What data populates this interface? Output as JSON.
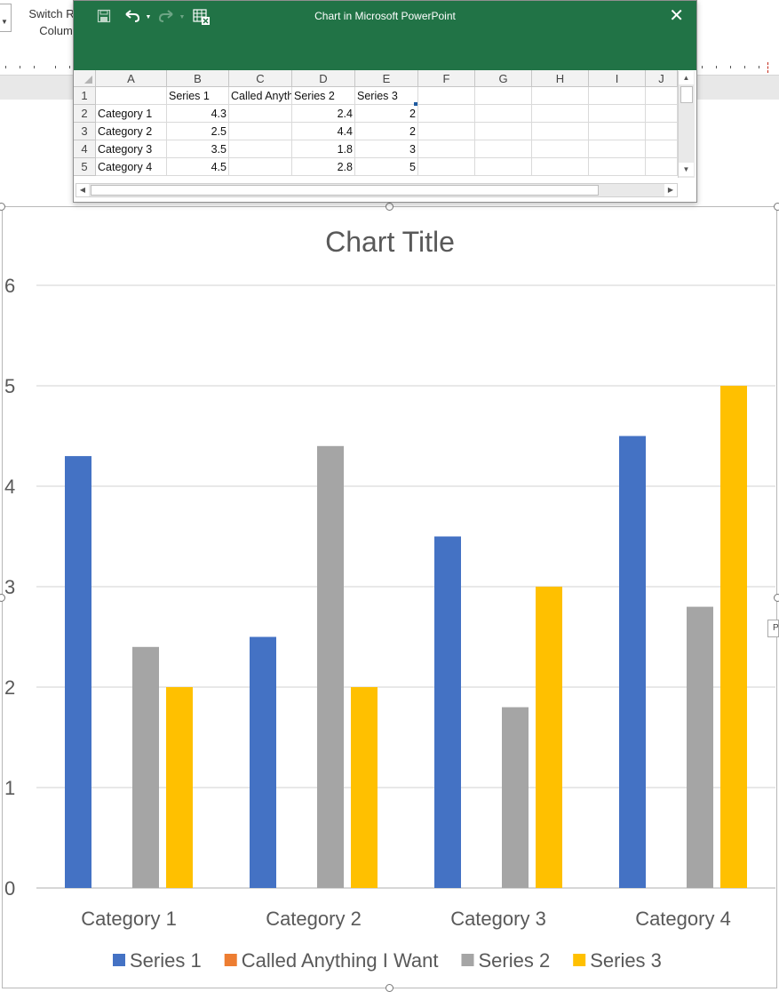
{
  "ribbon": {
    "switch_line1": "Switch R",
    "switch_line2": "Colum"
  },
  "sheet": {
    "window_title": "Chart in Microsoft PowerPoint",
    "columns": [
      "A",
      "B",
      "C",
      "D",
      "E",
      "F",
      "G",
      "H",
      "I",
      "J"
    ],
    "rows": [
      "1",
      "2",
      "3",
      "4",
      "5"
    ],
    "cells": [
      [
        "",
        "Series 1",
        "Called Anything I Want",
        "Series 2",
        "Series 3"
      ],
      [
        "Category 1",
        "4.3",
        "",
        "2.4",
        "2"
      ],
      [
        "Category 2",
        "2.5",
        "",
        "4.4",
        "2"
      ],
      [
        "Category 3",
        "3.5",
        "",
        "1.8",
        "3"
      ],
      [
        "Category 4",
        "4.5",
        "",
        "2.8",
        "5"
      ]
    ]
  },
  "chart_data": {
    "type": "bar",
    "title": "Chart Title",
    "categories": [
      "Category 1",
      "Category 2",
      "Category 3",
      "Category 4"
    ],
    "series": [
      {
        "name": "Series 1",
        "values": [
          4.3,
          2.5,
          3.5,
          4.5
        ],
        "color": "#4472c4"
      },
      {
        "name": "Called Anything I Want",
        "values": [
          null,
          null,
          null,
          null
        ],
        "color": "#ed7d31"
      },
      {
        "name": "Series 2",
        "values": [
          2.4,
          4.4,
          1.8,
          2.8
        ],
        "color": "#a5a5a5"
      },
      {
        "name": "Series 3",
        "values": [
          2,
          2,
          3,
          5
        ],
        "color": "#ffc000"
      }
    ],
    "yticks": [
      "0",
      "1",
      "2",
      "3",
      "4",
      "5",
      "6"
    ],
    "ylim": [
      0,
      6
    ],
    "grid": true,
    "legend_position": "bottom"
  },
  "tooltip_fragment": "P"
}
